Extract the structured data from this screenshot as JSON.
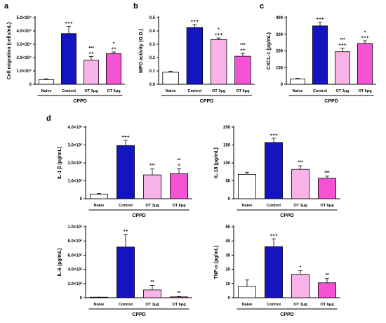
{
  "panel_labels": [
    "a",
    "b",
    "c",
    "d"
  ],
  "colors": {
    "Naive": "#ffffff",
    "Control": "#1515c0",
    "OT 3μg": "#f8b4e8",
    "OT 6μg": "#f454d4",
    "axis": "#000000"
  },
  "chart_data": [
    {
      "type": "bar",
      "id": "a",
      "label": "a",
      "ylabel": "Cell migration (cells/mL)",
      "ylim": [
        0,
        50000
      ],
      "ytick_values": [
        0,
        10000,
        20000,
        30000,
        40000,
        50000
      ],
      "ytick_labels": [
        "0",
        "1.0×10⁴",
        "2.0×10⁴",
        "3.0×10⁴",
        "4.0×10⁴",
        "5.0×10⁴"
      ],
      "categories": [
        "Naive",
        "Control",
        "OT 3μg",
        "OT 6μg"
      ],
      "values": [
        3500,
        38000,
        18000,
        23000
      ],
      "errors": [
        600,
        5500,
        2800,
        1200
      ],
      "significance": [
        [],
        [
          "+++"
        ],
        [
          "***",
          "++"
        ],
        [
          "*",
          "++"
        ]
      ],
      "group_label": "CPPD"
    },
    {
      "type": "bar",
      "id": "b",
      "label": "b",
      "ylabel": "MPO activity (O.D.)",
      "ylim": [
        0,
        0.5
      ],
      "ytick_values": [
        0,
        0.1,
        0.2,
        0.3,
        0.4,
        0.5
      ],
      "ytick_labels": [
        "0.0",
        "0.1",
        "0.2",
        "0.3",
        "0.4",
        "0.5"
      ],
      "categories": [
        "Naive",
        "Control",
        "OT 3μg",
        "OT 6μg"
      ],
      "values": [
        0.09,
        0.425,
        0.335,
        0.21
      ],
      "errors": [
        0.008,
        0.022,
        0.012,
        0.022
      ],
      "significance": [
        [],
        [
          "+++"
        ],
        [
          "*",
          "+++"
        ],
        [
          "***",
          "++"
        ]
      ],
      "group_label": "CPPD"
    },
    {
      "type": "bar",
      "id": "c",
      "label": "c",
      "ylabel": "CXCL-1 (pg/mL)",
      "ylim": [
        0,
        400
      ],
      "ytick_values": [
        0,
        100,
        200,
        300,
        400
      ],
      "ytick_labels": [
        "0",
        "100",
        "200",
        "300",
        "400"
      ],
      "categories": [
        "Naive",
        "Control",
        "OT 3μg",
        "OT 6μg"
      ],
      "values": [
        32,
        350,
        195,
        245
      ],
      "errors": [
        4,
        22,
        22,
        16
      ],
      "significance": [
        [],
        [
          "+++"
        ],
        [
          "***",
          "+++"
        ],
        [
          "*",
          "+++"
        ]
      ],
      "group_label": "CPPD"
    },
    {
      "type": "bar",
      "id": "d1",
      "ylabel": "IL-1 β (pg/mL)",
      "ylim": [
        0,
        4000
      ],
      "ytick_values": [
        0,
        1000,
        2000,
        3000,
        4000
      ],
      "ytick_labels": [
        "0",
        "1.0×10³",
        "2.0×10³",
        "3.0×10³",
        "4.0×10³"
      ],
      "categories": [
        "Naive",
        "Control",
        "OT 3μg",
        "OT 6μg"
      ],
      "values": [
        260,
        2970,
        1330,
        1400
      ],
      "errors": [
        30,
        300,
        330,
        280
      ],
      "significance": [
        [],
        [
          "+++"
        ],
        [
          "***"
        ],
        [
          "**",
          "+"
        ]
      ],
      "group_label": "CPPD"
    },
    {
      "type": "bar",
      "id": "d2",
      "ylabel": "IL-18 (pg/mL)",
      "ylim": [
        0,
        200
      ],
      "ytick_values": [
        0,
        50,
        100,
        150,
        200
      ],
      "ytick_labels": [
        "0",
        "50",
        "100",
        "150",
        "200"
      ],
      "categories": [
        "Naive",
        "Control",
        "OT 3μg",
        "OT 6μg"
      ],
      "values": [
        68,
        157,
        82,
        57
      ],
      "errors": [
        6,
        12,
        10,
        6
      ],
      "significance": [
        [],
        [
          "+++"
        ],
        [
          "***"
        ],
        [
          "***"
        ]
      ],
      "group_label": "CPPD"
    },
    {
      "type": "bar",
      "id": "d3",
      "ylabel": "IL-6 (pg/mL)",
      "ylim": [
        0,
        1000
      ],
      "ytick_values": [
        0,
        200,
        400,
        600,
        800,
        1000
      ],
      "ytick_labels": [
        "0",
        "2.0×10²",
        "4.0×10²",
        "6.0×10²",
        "8.0×10²",
        "1.0×10³"
      ],
      "categories": [
        "Naive",
        "Control",
        "OT 3μg",
        "OT 6μg"
      ],
      "values": [
        5,
        715,
        110,
        12
      ],
      "errors": [
        2,
        180,
        65,
        6
      ],
      "significance": [
        [],
        [
          "++"
        ],
        [
          "**"
        ],
        [
          "**"
        ]
      ],
      "group_label": "CPPD"
    },
    {
      "type": "bar",
      "id": "d4",
      "ylabel": "TNF-α (pg/mL)",
      "ylim": [
        0,
        50
      ],
      "ytick_values": [
        0,
        10,
        20,
        30,
        40,
        50
      ],
      "ytick_labels": [
        "0",
        "10",
        "20",
        "30",
        "40",
        "50"
      ],
      "categories": [
        "Naive",
        "Control",
        "OT 3μg",
        "OT 6μg"
      ],
      "values": [
        8,
        36,
        16.5,
        10.5
      ],
      "errors": [
        4.5,
        5.5,
        2.5,
        3
      ],
      "significance": [
        [],
        [
          "+++"
        ],
        [
          "*"
        ],
        [
          "**"
        ]
      ],
      "group_label": "CPPD"
    }
  ]
}
